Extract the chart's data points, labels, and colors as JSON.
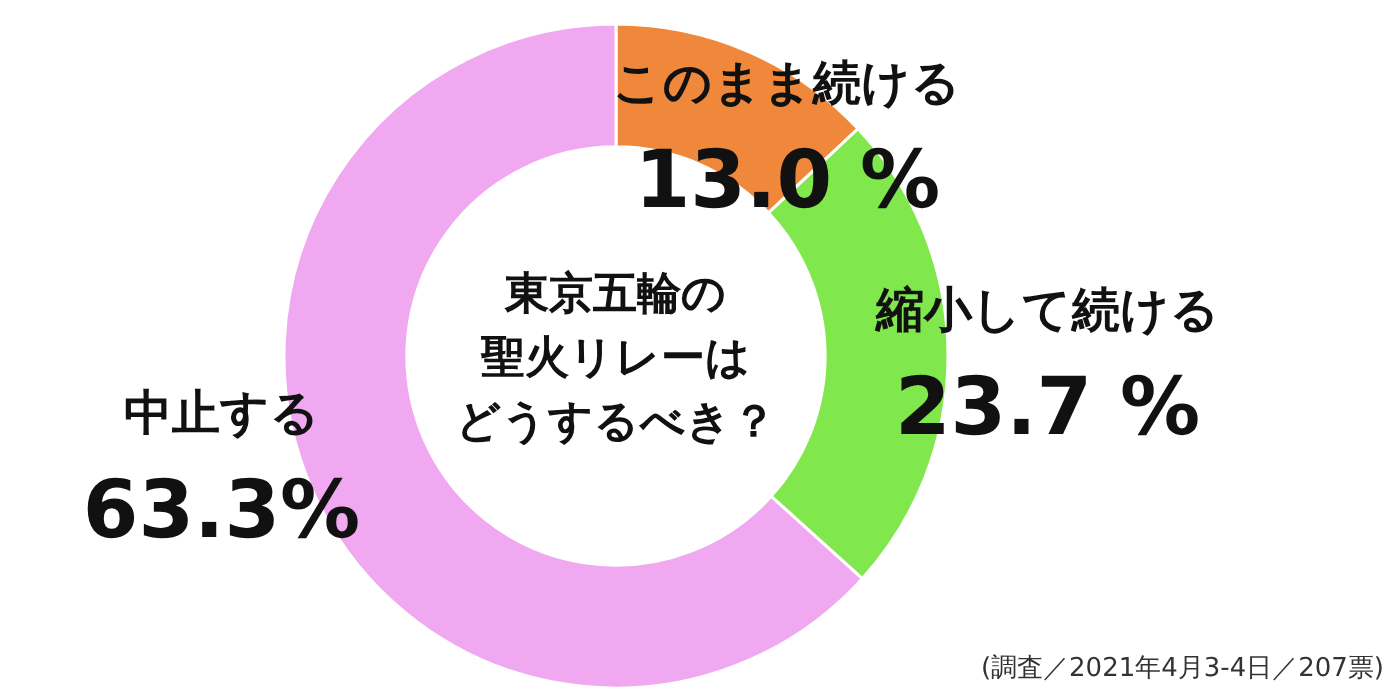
{
  "chart_data": {
    "type": "donut",
    "title": "東京五輪の聖火リレーはどうするべき？",
    "categories": [
      "このまま続ける",
      "縮小して続ける",
      "中止する"
    ],
    "values": [
      13.0,
      23.7,
      63.3
    ],
    "value_labels": [
      "13.0 %",
      "23.7 %",
      "63.3%"
    ],
    "colors": [
      "#f0883c",
      "#80e84c",
      "#f0a8f0"
    ],
    "annotations": [
      "(調査／2021年4月3-4日／207票)"
    ]
  }
}
